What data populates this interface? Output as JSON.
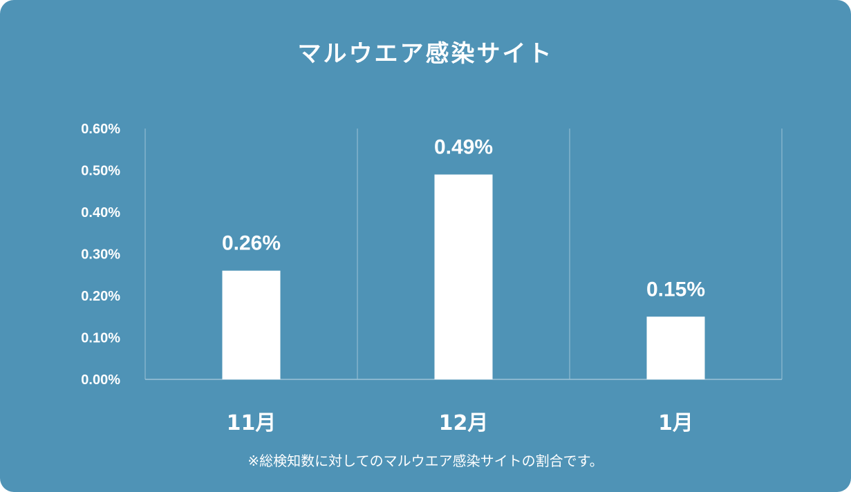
{
  "chart_data": {
    "type": "bar",
    "title": "マルウエア感染サイト",
    "categories": [
      "11月",
      "12月",
      "1月"
    ],
    "values": [
      0.26,
      0.49,
      0.15
    ],
    "value_labels": [
      "0.26%",
      "0.49%",
      "0.15%"
    ],
    "y_ticks": [
      "0.00%",
      "0.10%",
      "0.20%",
      "0.30%",
      "0.40%",
      "0.50%",
      "0.60%"
    ],
    "ylim": [
      0,
      0.6
    ],
    "grid": "vertical separators only",
    "legend": "none",
    "xlabel": "",
    "ylabel": "",
    "footnote": "※総検知数に対してのマルウエア感染サイトの割合です。"
  },
  "colors": {
    "background": "#4f93b6",
    "bar": "#ffffff",
    "text": "#ffffff",
    "grid": "#9ec3d7"
  }
}
